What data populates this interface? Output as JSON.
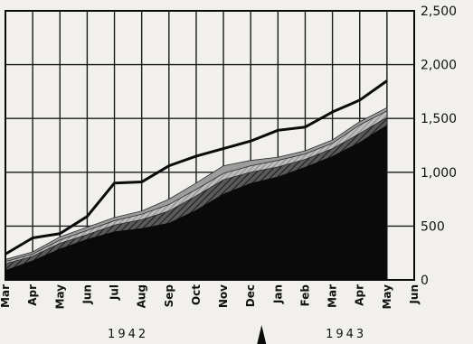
{
  "chart_data": {
    "type": "area",
    "title": "",
    "xlabel": "",
    "ylabel": "",
    "categories": [
      "Mar",
      "Apr",
      "May",
      "Jun",
      "Jul",
      "Aug",
      "Sep",
      "Oct",
      "Nov",
      "Dec",
      "Jan",
      "Feb",
      "Mar",
      "Apr",
      "May",
      "Jun"
    ],
    "year_labels": [
      "1942",
      "1943"
    ],
    "ylim": [
      0,
      2500
    ],
    "yticks": [
      "0",
      "500",
      "1,000",
      "1,500",
      "2,000",
      "2,500"
    ],
    "grid": true,
    "legend": "none",
    "series": [
      {
        "fill": "#0a0a0a",
        "values": [
          90,
          180,
          290,
          380,
          450,
          480,
          530,
          650,
          800,
          900,
          960,
          1050,
          1150,
          1280,
          1440,
          null
        ]
      },
      {
        "fill": "hatched-dark",
        "values": [
          150,
          220,
          340,
          420,
          510,
          560,
          640,
          780,
          930,
          1000,
          1050,
          1120,
          1220,
          1360,
          1510,
          null
        ]
      },
      {
        "fill": "hatched-light",
        "values": [
          170,
          240,
          370,
          460,
          550,
          610,
          700,
          840,
          990,
          1060,
          1110,
          1170,
          1270,
          1440,
          1570,
          null
        ]
      },
      {
        "fill": "grey",
        "values": [
          190,
          260,
          400,
          490,
          580,
          640,
          750,
          900,
          1060,
          1110,
          1140,
          1200,
          1300,
          1470,
          1600,
          null
        ]
      },
      {
        "fill": "line-only",
        "values": [
          240,
          390,
          430,
          590,
          900,
          910,
          1060,
          1150,
          1220,
          1290,
          1390,
          1420,
          1560,
          1670,
          1850,
          null
        ]
      }
    ]
  }
}
